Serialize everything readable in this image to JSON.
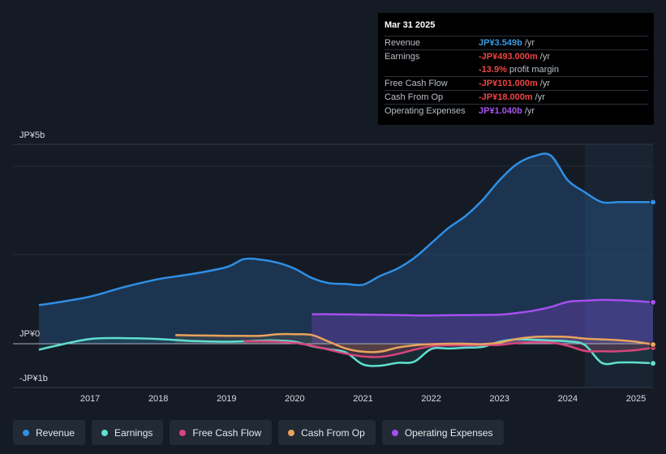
{
  "tooltip": {
    "date": "Mar 31 2025",
    "rows": [
      {
        "label": "Revenue",
        "value": "JP¥3.549b",
        "unit": "/yr",
        "color": "#3b9be4"
      },
      {
        "label": "Earnings",
        "value": "-JP¥493.000m",
        "unit": "/yr",
        "color": "#ef4444"
      },
      {
        "label": "",
        "value": "-13.9%",
        "unit": "profit margin",
        "color": "#ef4444"
      },
      {
        "label": "Free Cash Flow",
        "value": "-JP¥101.000m",
        "unit": "/yr",
        "color": "#ef4444"
      },
      {
        "label": "Cash From Op",
        "value": "-JP¥18.000m",
        "unit": "/yr",
        "color": "#ef4444"
      },
      {
        "label": "Operating Expenses",
        "value": "JP¥1.040b",
        "unit": "/yr",
        "color": "#a755f0"
      }
    ]
  },
  "legend": [
    {
      "label": "Revenue",
      "color": "#2e8fe6"
    },
    {
      "label": "Earnings",
      "color": "#5fe0d0"
    },
    {
      "label": "Free Cash Flow",
      "color": "#d6457c"
    },
    {
      "label": "Cash From Op",
      "color": "#e9a35c"
    },
    {
      "label": "Operating Expenses",
      "color": "#a54ff0"
    }
  ],
  "chart_data": {
    "type": "area",
    "title": "",
    "y_tick_labels": [
      "JP¥5b",
      "JP¥0",
      "-JP¥1b"
    ],
    "ylim": [
      -1,
      5
    ],
    "xlim": [
      2016.25,
      2025.25
    ],
    "x_ticks": [
      2017,
      2018,
      2019,
      2020,
      2021,
      2022,
      2023,
      2024,
      2025
    ],
    "x_tick_labels": [
      "2017",
      "2018",
      "2019",
      "2020",
      "2021",
      "2022",
      "2023",
      "2024",
      "2025"
    ],
    "series": [
      {
        "name": "Revenue",
        "color": "#2e8fe6",
        "x": [
          2016.25,
          2016.5,
          2017.0,
          2017.5,
          2018.0,
          2018.5,
          2019.0,
          2019.25,
          2019.5,
          2019.75,
          2020.0,
          2020.25,
          2020.5,
          2020.75,
          2021.0,
          2021.25,
          2021.5,
          2021.75,
          2022.0,
          2022.25,
          2022.5,
          2022.75,
          2023.0,
          2023.25,
          2023.5,
          2023.75,
          2024.0,
          2024.25,
          2024.5,
          2024.75,
          2025.0,
          2025.25
        ],
        "values": [
          0.97,
          1.03,
          1.18,
          1.42,
          1.62,
          1.75,
          1.92,
          2.12,
          2.11,
          2.03,
          1.88,
          1.65,
          1.52,
          1.5,
          1.48,
          1.7,
          1.88,
          2.15,
          2.52,
          2.9,
          3.2,
          3.6,
          4.1,
          4.5,
          4.7,
          4.72,
          4.1,
          3.8,
          3.55,
          3.55,
          3.55,
          3.55
        ]
      },
      {
        "name": "Earnings",
        "color": "#5fe0d0",
        "x": [
          2016.25,
          2016.5,
          2017.0,
          2017.5,
          2018.0,
          2018.5,
          2019.0,
          2019.25,
          2019.5,
          2019.75,
          2020.0,
          2020.25,
          2020.5,
          2020.75,
          2021.0,
          2021.25,
          2021.5,
          2021.75,
          2022.0,
          2022.25,
          2022.5,
          2022.75,
          2023.0,
          2023.25,
          2023.5,
          2023.75,
          2024.0,
          2024.25,
          2024.5,
          2024.75,
          2025.0,
          2025.25
        ],
        "values": [
          -0.15,
          -0.05,
          0.12,
          0.14,
          0.12,
          0.07,
          0.05,
          0.06,
          0.08,
          0.08,
          0.05,
          -0.06,
          -0.14,
          -0.22,
          -0.52,
          -0.55,
          -0.48,
          -0.45,
          -0.13,
          -0.12,
          -0.1,
          -0.08,
          0.05,
          0.11,
          0.1,
          0.08,
          0.06,
          -0.03,
          -0.48,
          -0.47,
          -0.47,
          -0.49
        ]
      },
      {
        "name": "Free Cash Flow",
        "color": "#d6457c",
        "x": [
          2019.25,
          2019.5,
          2019.75,
          2020.0,
          2020.25,
          2020.5,
          2020.75,
          2021.0,
          2021.25,
          2021.5,
          2021.75,
          2022.0,
          2022.25,
          2022.5,
          2022.75,
          2023.0,
          2023.25,
          2023.5,
          2023.75,
          2024.0,
          2024.25,
          2024.5,
          2024.75,
          2025.0,
          2025.25
        ],
        "values": [
          0.06,
          0.06,
          0.05,
          0.02,
          -0.05,
          -0.15,
          -0.25,
          -0.32,
          -0.33,
          -0.26,
          -0.15,
          -0.06,
          -0.04,
          -0.04,
          -0.03,
          -0.03,
          0.02,
          0.04,
          0.03,
          -0.05,
          -0.18,
          -0.19,
          -0.19,
          -0.16,
          -0.1
        ]
      },
      {
        "name": "Cash From Op",
        "color": "#e9a35c",
        "x": [
          2018.25,
          2018.5,
          2019.0,
          2019.5,
          2019.75,
          2020.0,
          2020.25,
          2020.5,
          2020.75,
          2021.0,
          2021.25,
          2021.5,
          2021.75,
          2022.0,
          2022.25,
          2022.5,
          2022.75,
          2023.0,
          2023.25,
          2023.5,
          2023.75,
          2024.0,
          2024.25,
          2024.5,
          2024.75,
          2025.0,
          2025.25
        ],
        "values": [
          0.22,
          0.21,
          0.2,
          0.2,
          0.24,
          0.24,
          0.22,
          0.05,
          -0.12,
          -0.2,
          -0.2,
          -0.1,
          -0.04,
          -0.01,
          0.0,
          0.0,
          -0.01,
          0.03,
          0.12,
          0.17,
          0.18,
          0.17,
          0.13,
          0.11,
          0.09,
          0.05,
          -0.02
        ]
      },
      {
        "name": "Operating Expenses",
        "color": "#a54ff0",
        "x": [
          2020.25,
          2020.5,
          2021.0,
          2021.5,
          2021.75,
          2022.0,
          2022.5,
          2023.0,
          2023.25,
          2023.5,
          2023.75,
          2024.0,
          2024.25,
          2024.5,
          2024.75,
          2025.0,
          2025.25
        ],
        "values": [
          0.74,
          0.74,
          0.73,
          0.72,
          0.71,
          0.71,
          0.72,
          0.73,
          0.77,
          0.83,
          0.92,
          1.05,
          1.08,
          1.1,
          1.09,
          1.07,
          1.04
        ]
      }
    ],
    "forecast_start": 2024.25
  }
}
